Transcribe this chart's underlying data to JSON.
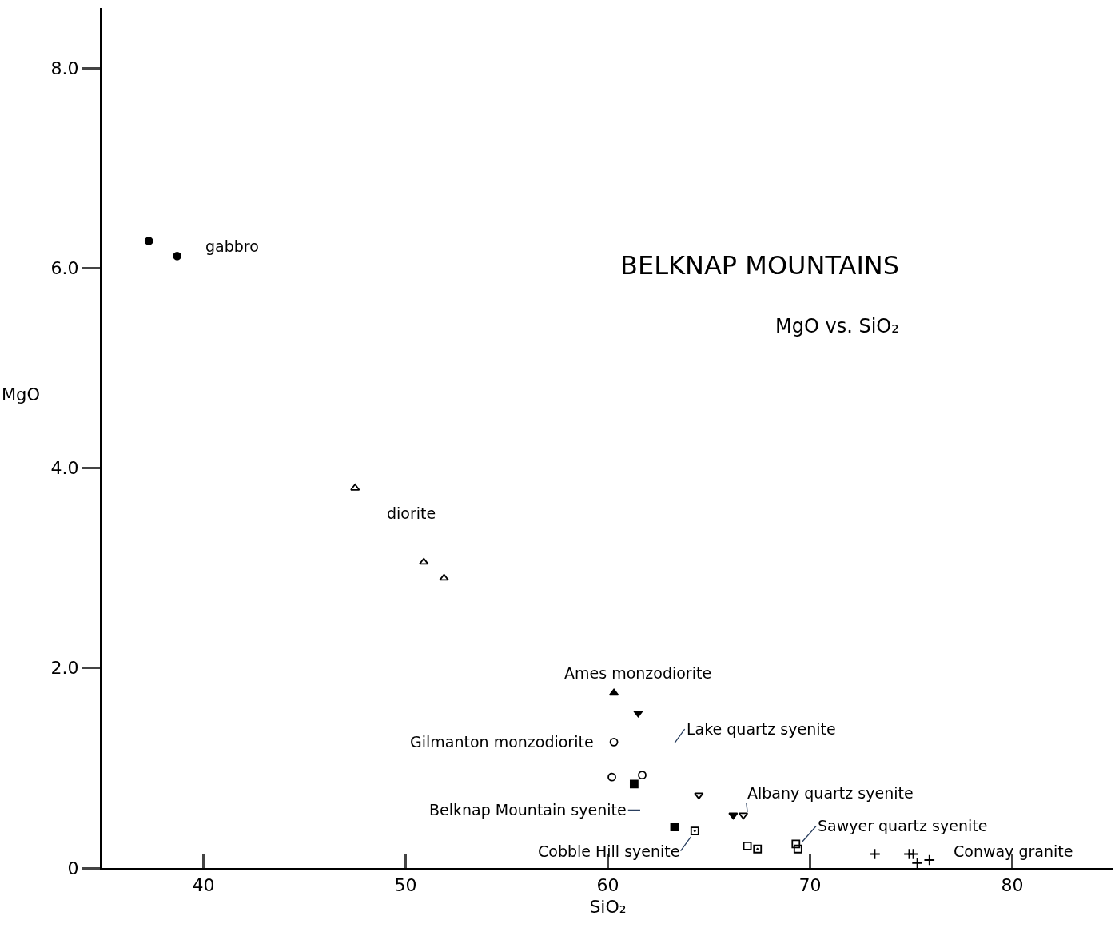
{
  "chart_data": {
    "type": "scatter",
    "title": "BELKNAP MOUNTAINS",
    "subtitle": "MgO vs. SiO₂",
    "xlabel": "SiO₂",
    "ylabel": "MgO",
    "xlim": [
      35,
      85
    ],
    "xticks": [
      40,
      50,
      60,
      70,
      80
    ],
    "ylim": [
      0,
      8.6
    ],
    "yticks": [
      {
        "value": 0,
        "label": "0"
      },
      {
        "value": 2,
        "label": "2.0"
      },
      {
        "value": 4,
        "label": "4.0"
      },
      {
        "value": 6,
        "label": "6.0"
      },
      {
        "value": 8,
        "label": "8.0"
      }
    ],
    "legend": false,
    "series": [
      {
        "name": "gabbro",
        "color": "#000000",
        "marker": "circle",
        "x": [
          37.3,
          38.7
        ],
        "values": [
          6.27,
          6.12
        ]
      },
      {
        "name": "diorite",
        "color": "#000000",
        "marker": "triangle",
        "x": [
          47.5,
          50.9,
          51.9
        ],
        "values": [
          3.8,
          3.06,
          2.9
        ]
      },
      {
        "name": "Ames monzodiorite",
        "color": "#000000",
        "marker": "triangle",
        "x": [
          60.3
        ],
        "values": [
          1.75
        ]
      },
      {
        "name": "Lake quartz syenite",
        "color": "#000000",
        "marker": "triangle",
        "x": [
          61.5,
          66.2
        ],
        "values": [
          1.55,
          0.53
        ]
      },
      {
        "name": "Gilmanton monzodiorite",
        "color": "#000000",
        "marker": "circle",
        "x": [
          60.3,
          60.2,
          61.7
        ],
        "values": [
          1.26,
          0.91,
          0.93
        ]
      },
      {
        "name": "Albany quartz syenite",
        "color": "#000000",
        "marker": "triangle",
        "x": [
          64.5,
          66.7
        ],
        "values": [
          0.73,
          0.53
        ]
      },
      {
        "name": "Belknap Mountain syenite",
        "color": "#000000",
        "marker": "square",
        "x": [
          61.3,
          63.3
        ],
        "values": [
          0.84,
          0.41
        ]
      },
      {
        "name": "Sawyer quartz syenite",
        "color": "#000000",
        "marker": "square",
        "x": [
          66.9,
          69.3,
          69.4
        ],
        "values": [
          0.22,
          0.24,
          0.19
        ]
      },
      {
        "name": "Cobble Hill syenite",
        "color": "#000000",
        "marker": "square",
        "x": [
          64.3,
          67.4
        ],
        "values": [
          0.37,
          0.19
        ]
      },
      {
        "name": "Conway granite",
        "color": "#000000",
        "marker": "cross",
        "x": [
          73.2,
          74.9,
          75.1,
          75.3,
          75.9
        ],
        "values": [
          0.14,
          0.14,
          0.14,
          0.05,
          0.08
        ]
      }
    ]
  }
}
